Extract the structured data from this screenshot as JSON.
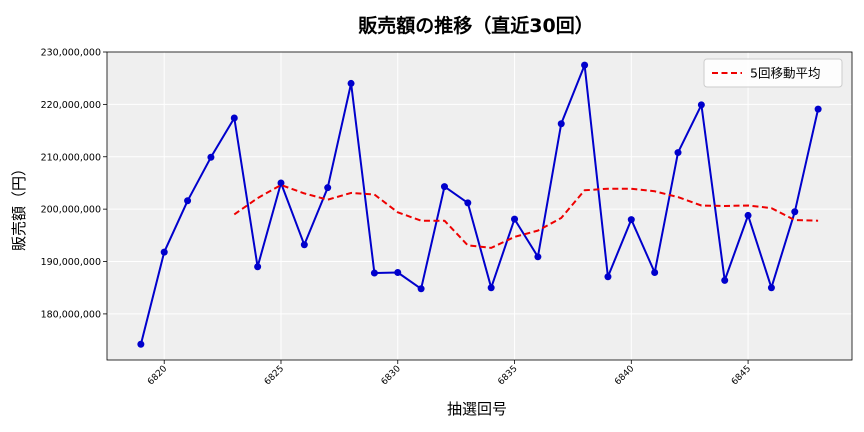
{
  "chart_data": {
    "type": "line",
    "title": "販売額の推移（直近30回）",
    "xlabel": "抽選回号",
    "ylabel": "販売額（円）",
    "xlim": [
      6817.55,
      6849.45
    ],
    "ylim": [
      171200000,
      230000000
    ],
    "x_ticks": [
      6820,
      6825,
      6830,
      6835,
      6840,
      6845
    ],
    "y_ticks": [
      180000000,
      190000000,
      200000000,
      210000000,
      220000000,
      230000000
    ],
    "y_tick_labels": [
      "180,000,000",
      "190,000,000",
      "200,000,000",
      "210,000,000",
      "220,000,000",
      "230,000,000"
    ],
    "grid": true,
    "legend_position": "top-right",
    "x": [
      6819,
      6820,
      6821,
      6822,
      6823,
      6824,
      6825,
      6826,
      6827,
      6828,
      6829,
      6830,
      6831,
      6832,
      6833,
      6834,
      6835,
      6836,
      6837,
      6838,
      6839,
      6840,
      6841,
      6842,
      6843,
      6844,
      6845,
      6846,
      6847,
      6848
    ],
    "series": [
      {
        "values": [
          174200000,
          191800000,
          201600000,
          209900000,
          217400000,
          189000000,
          205000000,
          193200000,
          204100000,
          224000000,
          187800000,
          187900000,
          184800000,
          204300000,
          201200000,
          185000000,
          198100000,
          190900000,
          216300000,
          227500000,
          187100000,
          198000000,
          187900000,
          210800000,
          219900000,
          186400000,
          198800000,
          185000000,
          199500000,
          219100000
        ],
        "color": "#0000cc",
        "style": "solid",
        "marker": "circle"
      },
      {
        "name": "5回移動平均",
        "values": [
          null,
          null,
          null,
          null,
          199000000,
          202100000,
          204600000,
          203000000,
          201800000,
          203100000,
          202800000,
          199400000,
          197800000,
          197800000,
          193100000,
          192600000,
          194700000,
          195900000,
          198300000,
          203600000,
          203900000,
          203900000,
          203400000,
          202300000,
          200700000,
          200600000,
          200700000,
          200200000,
          197900000,
          197800000
        ],
        "color": "#ee0000",
        "style": "dashed"
      }
    ]
  }
}
